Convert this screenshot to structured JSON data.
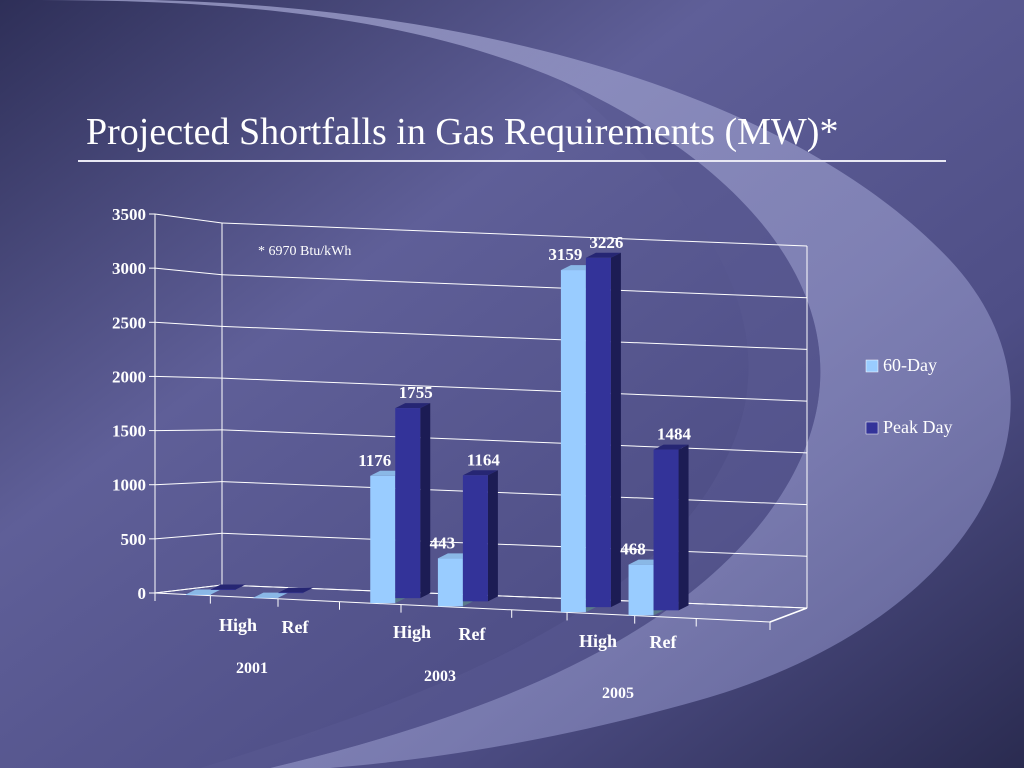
{
  "slide": {
    "title": "Projected Shortfalls in Gas Requirements (MW)*"
  },
  "colors": {
    "bg_dark": "#3a3b66",
    "bg_light": "#6a6aa0",
    "swoosh": "#9a9cc8",
    "series_60day": "#99ccff",
    "series_peakday": "#333399",
    "text": "#ffffff"
  },
  "chart_data": {
    "type": "bar",
    "title": "",
    "xlabel": "",
    "ylabel": "",
    "ylim": [
      0,
      3500
    ],
    "yticks": [
      "0",
      "500",
      "1000",
      "1500",
      "2000",
      "2500",
      "3000",
      "3500"
    ],
    "grid": true,
    "legend_position": "right",
    "annotation": "* 6970 Btu/kWh",
    "groups": [
      {
        "label": "2001",
        "categories": [
          "High",
          "Ref"
        ]
      },
      {
        "label": "2003",
        "categories": [
          "High",
          "Ref"
        ]
      },
      {
        "label": "2005",
        "categories": [
          "High",
          "Ref"
        ]
      }
    ],
    "categories": [
      "High",
      "Ref",
      "High",
      "Ref",
      "High",
      "Ref"
    ],
    "series": [
      {
        "name": "60-Day",
        "values": [
          0,
          0,
          1176,
          443,
          3159,
          468
        ],
        "labels": [
          "",
          "",
          "1176",
          "443",
          "3159",
          "468"
        ]
      },
      {
        "name": "Peak Day",
        "values": [
          0,
          0,
          1755,
          1164,
          3226,
          1484
        ],
        "labels": [
          "",
          "",
          "1755",
          "1164",
          "3226",
          "1484"
        ]
      }
    ]
  }
}
